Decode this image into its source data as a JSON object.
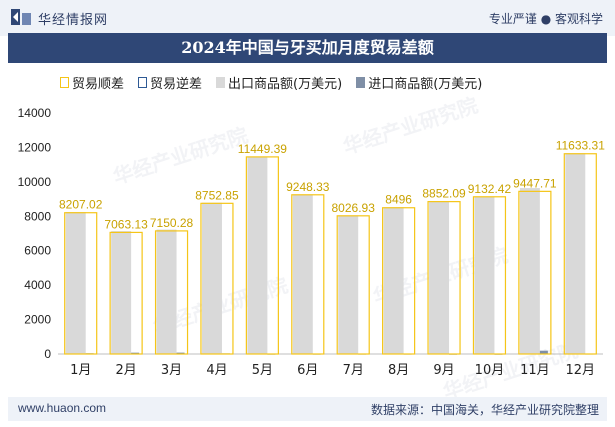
{
  "header": {
    "site_name": "华经情报网",
    "tagline": "专业严谨 ● 客观科学"
  },
  "footer": {
    "url": "www.huaon.com",
    "source": "数据来源：中国海关，华经产业研究院整理"
  },
  "watermark": "华经产业研究院",
  "colors": {
    "header_bg": "#2f4776",
    "surplus": "#f5c518",
    "deficit": "#2e5a95",
    "export": "#d9d9d9",
    "import": "#7f8fa6"
  },
  "chart_data": {
    "type": "bar",
    "title": "2024年中国与牙买加月度贸易差额",
    "categories": [
      "1月",
      "2月",
      "3月",
      "4月",
      "5月",
      "6月",
      "7月",
      "8月",
      "9月",
      "10月",
      "11月",
      "12月"
    ],
    "series": [
      {
        "name": "贸易顺差",
        "values": [
          8207.02,
          7063.13,
          7150.28,
          8752.85,
          11449.39,
          9248.33,
          8026.93,
          8496,
          8852.09,
          9132.42,
          9447.71,
          11633.31
        ]
      },
      {
        "name": "贸易逆差",
        "values": [
          0,
          0,
          0,
          0,
          0,
          0,
          0,
          0,
          0,
          0,
          0,
          0
        ]
      },
      {
        "name": "出口商品额(万美元)",
        "values": [
          8250,
          7140,
          7230,
          8790,
          11470,
          9270,
          8050,
          8520,
          8870,
          9150,
          9640,
          11660
        ]
      },
      {
        "name": "进口商品额(万美元)",
        "values": [
          43,
          77,
          80,
          37,
          21,
          22,
          23,
          24,
          18,
          18,
          192,
          27
        ]
      }
    ],
    "data_labels": [
      "8207.02",
      "7063.13",
      "7150.28",
      "8752.85",
      "11449.39",
      "9248.33",
      "8026.93",
      "8496",
      "8852.09",
      "9132.42",
      "9447.71",
      "11633.31"
    ],
    "y_ticks": [
      "0",
      "2000",
      "4000",
      "6000",
      "8000",
      "10000",
      "12000",
      "14000"
    ],
    "ylim": [
      0,
      14000
    ],
    "legend_position": "top",
    "grid": false
  }
}
